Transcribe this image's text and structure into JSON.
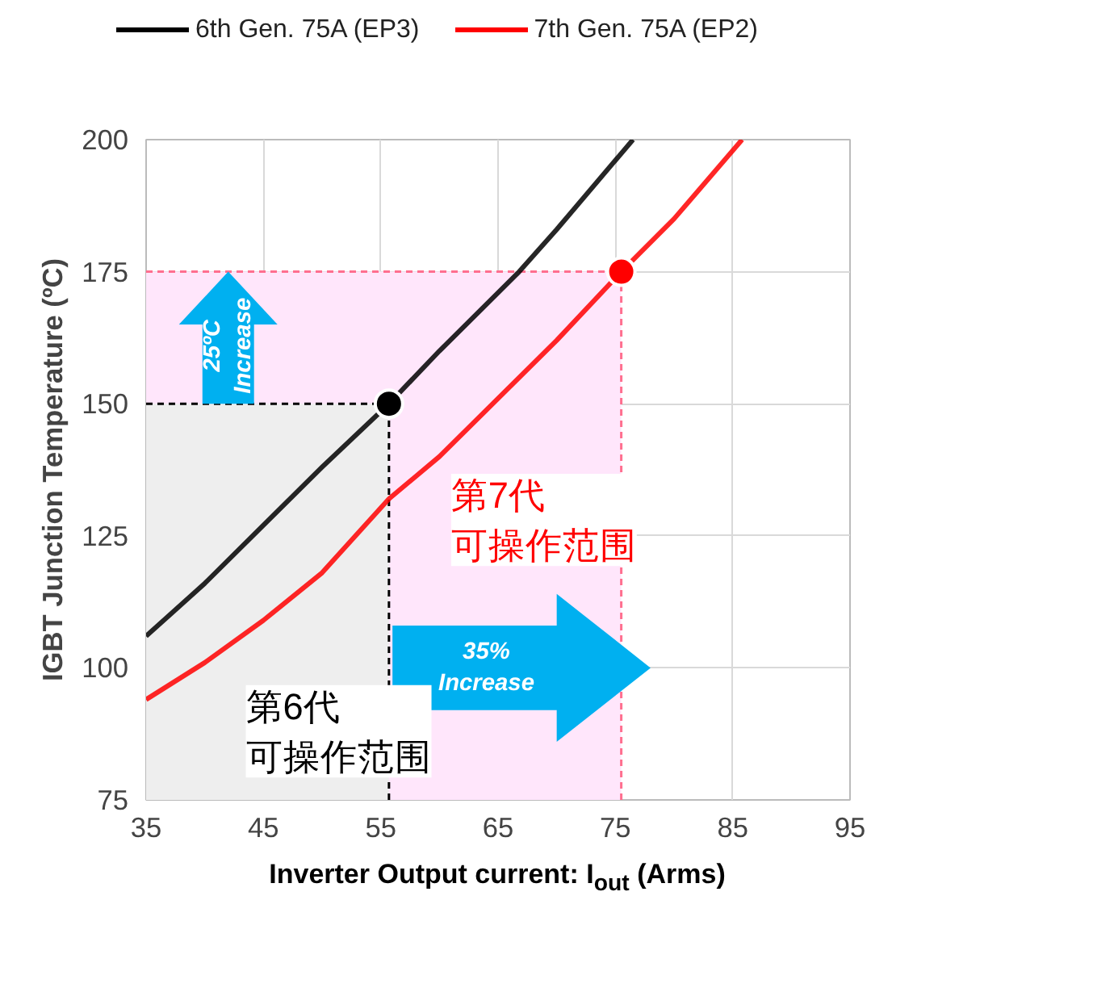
{
  "chart_data": {
    "type": "line",
    "xlabel": "Inverter Output current: I$_{out}$ (Arms)",
    "ylabel": "IGBT Junction Temperature (ºC)",
    "xlim": [
      35,
      95
    ],
    "xticks": [
      35,
      45,
      55,
      65,
      75,
      85,
      95
    ],
    "ylim": [
      75,
      200
    ],
    "yticks": [
      75,
      100,
      125,
      150,
      175,
      200
    ],
    "grid": true,
    "legend": "top",
    "line_style": "solid",
    "series": [
      {
        "name": "6th Gen. 75A (EP3)",
        "color": "#000000",
        "x": [
          35,
          40,
          45,
          50,
          55.7,
          60,
          66.8,
          70,
          76.5
        ],
        "values": [
          106,
          116,
          127,
          138,
          150,
          160,
          175,
          183,
          200
        ]
      },
      {
        "name": "7th Gen. 75A (EP2)",
        "color": "#ff0000",
        "x": [
          35,
          40,
          45,
          50,
          55.7,
          60,
          65,
          70,
          75.5,
          80,
          85.8
        ],
        "values": [
          94,
          101,
          109,
          118,
          132,
          140,
          151,
          162,
          175,
          185,
          200
        ]
      },
      {
        "type": "scatter",
        "color": "#000000",
        "x": [
          55.7
        ],
        "values": [
          150
        ]
      },
      {
        "type": "scatter",
        "color": "#ff0000",
        "x": [
          75.5
        ],
        "values": [
          175
        ]
      }
    ],
    "ref_lines": [
      {
        "axis": "y",
        "value": 150,
        "color": "#000000",
        "line_style": "dashed"
      },
      {
        "axis": "x",
        "value": 55.7,
        "color": "#000000",
        "line_style": "dashed"
      },
      {
        "axis": "y",
        "value": 175,
        "color": "#ff6f8f",
        "line_style": "dashed"
      },
      {
        "axis": "x",
        "value": 75.5,
        "color": "#ff6f8f",
        "line_style": "dashed"
      }
    ],
    "bands": [
      {
        "axis": "x",
        "from": 35,
        "to": 75.5,
        "color": "#ffe6fb"
      },
      {
        "axis": "x",
        "from": 35,
        "to": 55.7,
        "color": "#eeeeee"
      }
    ],
    "annotations": [
      {
        "text": "25ºC\nIncrease",
        "x": 42,
        "y": 150
      },
      "35%\nIncrease",
      "第7代可操作范围",
      "第6代可操作范围"
    ]
  }
}
